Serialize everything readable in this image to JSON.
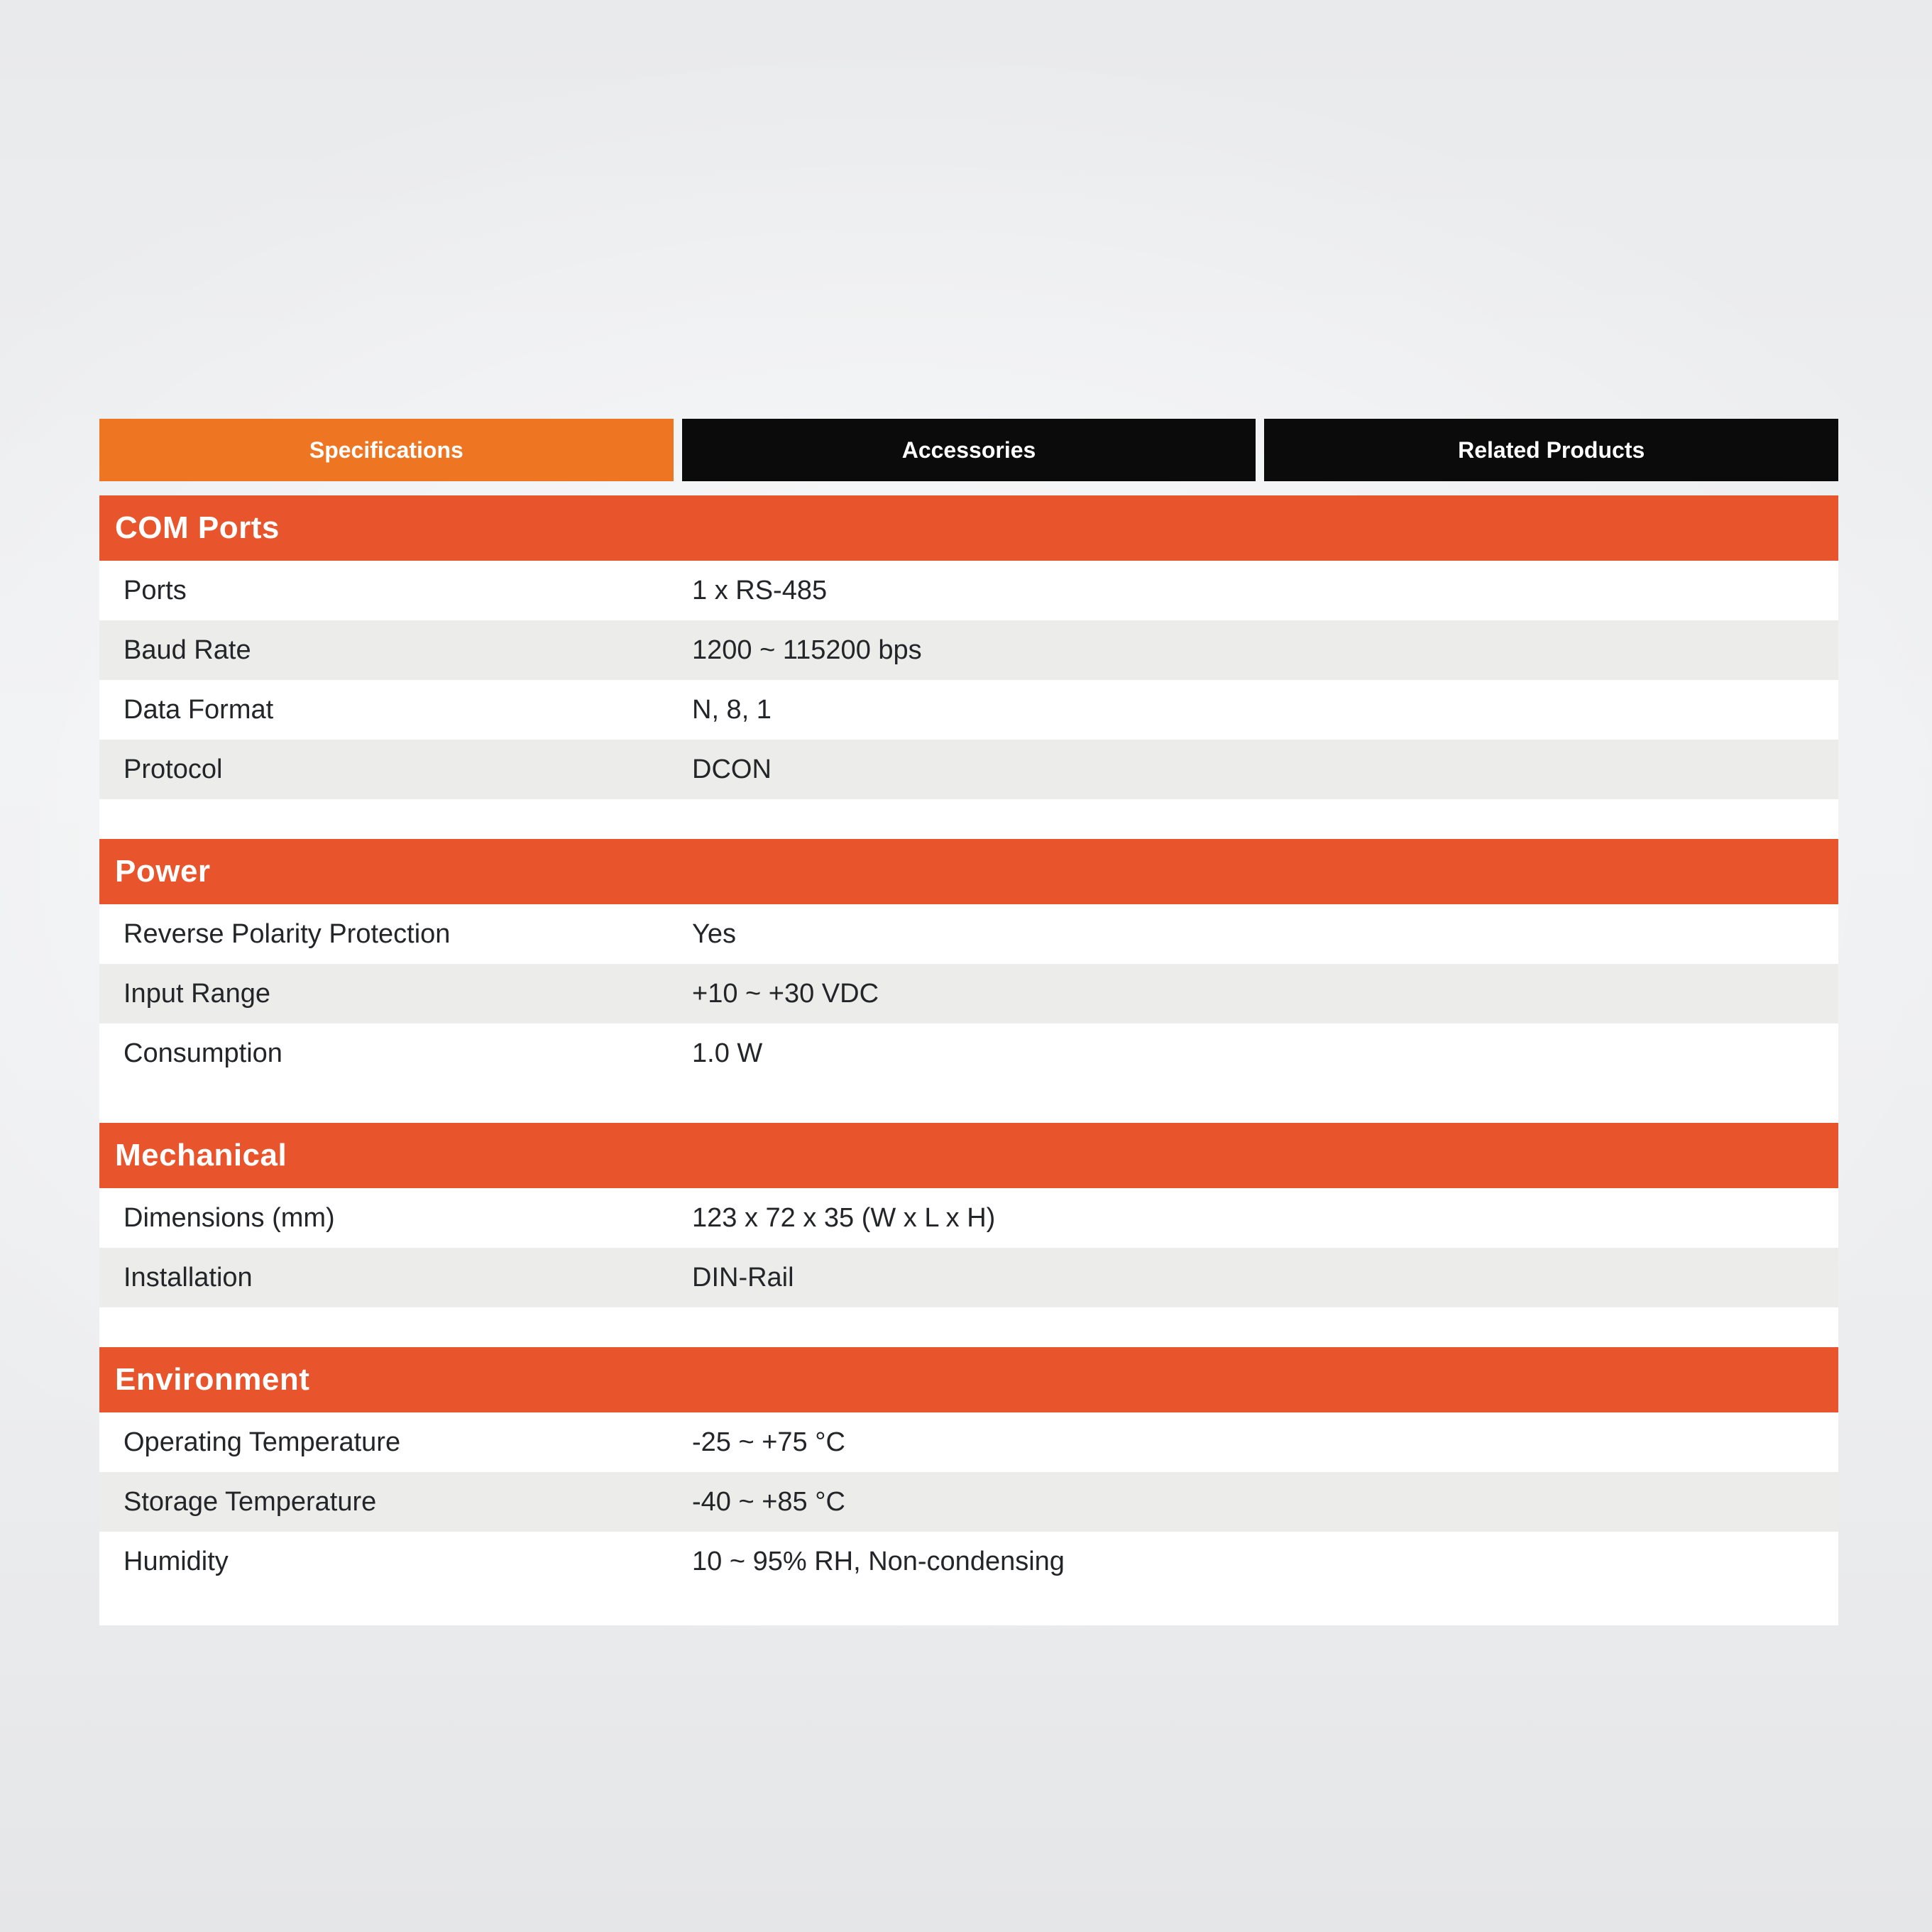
{
  "tabs": [
    {
      "label": "Specifications",
      "active": true
    },
    {
      "label": "Accessories",
      "active": false
    },
    {
      "label": "Related Products",
      "active": false
    }
  ],
  "sections": [
    {
      "title": "COM Ports",
      "rows": [
        {
          "label": "Ports",
          "value": "1 x RS-485"
        },
        {
          "label": "Baud Rate",
          "value": "1200 ~ 115200 bps"
        },
        {
          "label": "Data Format",
          "value": "N, 8, 1"
        },
        {
          "label": "Protocol",
          "value": "DCON"
        }
      ]
    },
    {
      "title": "Power",
      "rows": [
        {
          "label": "Reverse Polarity Protection",
          "value": "Yes"
        },
        {
          "label": "Input Range",
          "value": "+10 ~ +30 VDC"
        },
        {
          "label": "Consumption",
          "value": "1.0 W"
        }
      ]
    },
    {
      "title": "Mechanical",
      "rows": [
        {
          "label": "Dimensions (mm)",
          "value": "123 x 72 x 35 (W x L x H)"
        },
        {
          "label": "Installation",
          "value": "DIN-Rail"
        }
      ]
    },
    {
      "title": "Environment",
      "rows": [
        {
          "label": "Operating Temperature",
          "value": "-25 ~ +75 °C"
        },
        {
          "label": "Storage Temperature",
          "value": "-40 ~ +85 °C"
        },
        {
          "label": "Humidity",
          "value": "10 ~ 95% RH, Non-condensing"
        }
      ]
    }
  ],
  "colors": {
    "tab_active": "#EE7623",
    "tab_inactive": "#0B0B0B",
    "section_header": "#E8542B",
    "row_stripe": "#ECECEA",
    "row_text": "#232528",
    "page_background": "#ECEDEF"
  }
}
